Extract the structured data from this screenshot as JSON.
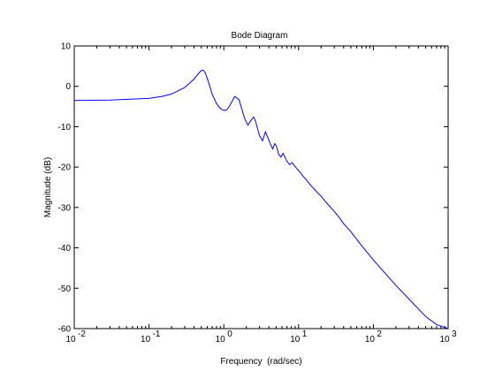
{
  "chart_data": {
    "type": "line",
    "title": "Bode Diagram",
    "xlabel": "Frequency  (rad/sec)",
    "ylabel": "Magnitude (dB)",
    "xscale": "log",
    "xlim": [
      0.01,
      1000
    ],
    "ylim": [
      -60,
      10
    ],
    "grid": false,
    "legend": "none",
    "x_ticks": [
      {
        "value": 0.01,
        "base": "10",
        "exp": "-2"
      },
      {
        "value": 0.1,
        "base": "10",
        "exp": "-1"
      },
      {
        "value": 1,
        "base": "10",
        "exp": "0"
      },
      {
        "value": 10,
        "base": "10",
        "exp": "1"
      },
      {
        "value": 100,
        "base": "10",
        "exp": "2"
      },
      {
        "value": 1000,
        "base": "10",
        "exp": "3"
      }
    ],
    "y_ticks": [
      10,
      0,
      -10,
      -20,
      -30,
      -40,
      -50,
      -60
    ],
    "line_color": "#0000ff",
    "series": [
      {
        "x": [
          0.01,
          0.03,
          0.1,
          0.15,
          0.2,
          0.3,
          0.4,
          0.45,
          0.5,
          0.53,
          0.56,
          0.6,
          0.65,
          0.7,
          0.8,
          0.9,
          1.0,
          1.1,
          1.2,
          1.4,
          1.6,
          1.75,
          1.9,
          2.1,
          2.3,
          2.5,
          2.65,
          2.8,
          3.0,
          3.3,
          3.6,
          3.9,
          4.2,
          4.5,
          4.8,
          5.1,
          5.4,
          5.8,
          6.2,
          6.6,
          7.0,
          7.6,
          8.2,
          8.9,
          9.7,
          10.5,
          11.5,
          12.5,
          13.8,
          15,
          16.5,
          18,
          20,
          23,
          26,
          30,
          35,
          40,
          50,
          70,
          100,
          150,
          200,
          300,
          500,
          700,
          1000
        ],
        "y": [
          -3.5,
          -3.4,
          -3.0,
          -2.5,
          -1.9,
          -0.3,
          1.8,
          3.0,
          3.9,
          4.0,
          3.5,
          2.0,
          0.0,
          -2.0,
          -4.3,
          -5.5,
          -6.0,
          -5.8,
          -4.8,
          -2.5,
          -3.3,
          -5.8,
          -8.0,
          -9.6,
          -8.5,
          -7.6,
          -8.6,
          -10.2,
          -12.2,
          -13.5,
          -11.3,
          -12.8,
          -14.3,
          -15.5,
          -14.2,
          -15.0,
          -16.8,
          -17.5,
          -16.6,
          -17.6,
          -18.6,
          -19.4,
          -18.9,
          -19.8,
          -20.6,
          -21.3,
          -22.3,
          -23.0,
          -24.0,
          -24.8,
          -25.6,
          -26.4,
          -27.2,
          -28.6,
          -29.7,
          -31.0,
          -32.5,
          -34.0,
          -36.0,
          -39.5,
          -43.0,
          -46.7,
          -49.3,
          -52.7,
          -57.0,
          -59.0,
          -60.0
        ]
      }
    ]
  }
}
